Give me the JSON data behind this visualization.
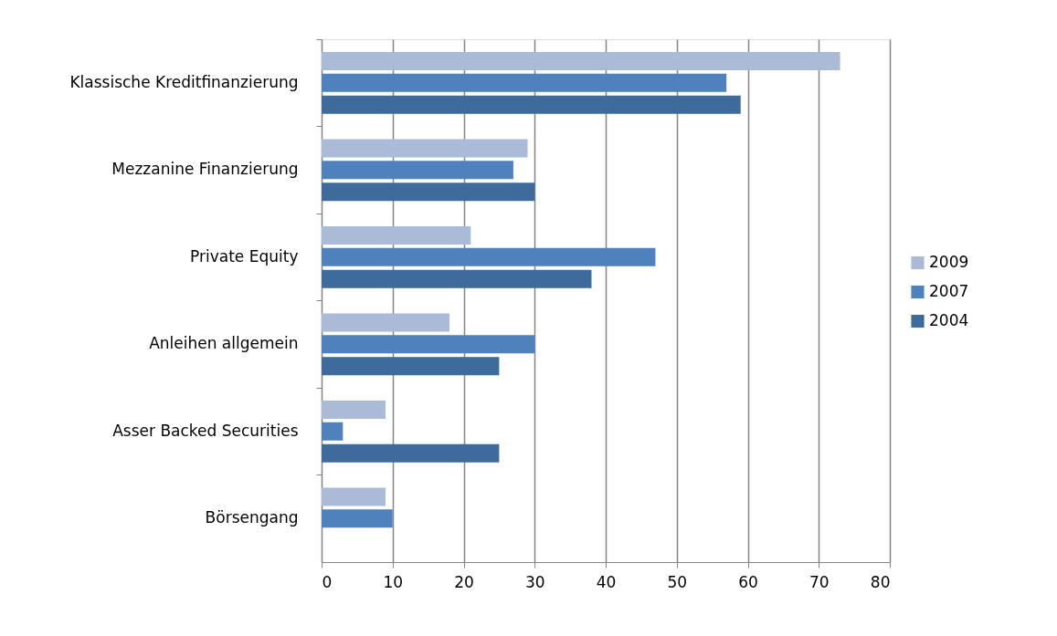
{
  "chart_data": {
    "type": "bar",
    "orientation": "horizontal",
    "categories": [
      "Klassische Kreditfinanzierung",
      "Mezzanine Finanzierung",
      "Private Equity",
      "Anleihen allgemein",
      "Asser Backed Securities",
      "Börsengang"
    ],
    "series": [
      {
        "name": "2009",
        "color": "#aabad7",
        "values": [
          73,
          29,
          21,
          18,
          9,
          9
        ]
      },
      {
        "name": "2007",
        "color": "#4f81bd",
        "values": [
          57,
          27,
          47,
          30,
          3,
          10
        ]
      },
      {
        "name": "2004",
        "color": "#3e6a9c",
        "values": [
          59,
          30,
          38,
          25,
          25,
          null
        ]
      }
    ],
    "xlim": [
      0,
      80
    ],
    "xticks": [
      0,
      10,
      20,
      30,
      40,
      50,
      60,
      70,
      80
    ],
    "grid": "x",
    "legend": "right"
  }
}
